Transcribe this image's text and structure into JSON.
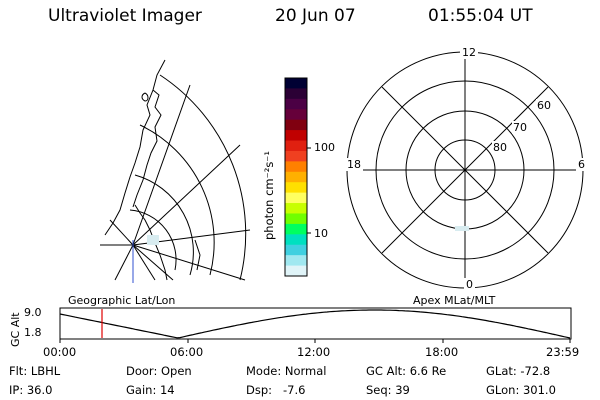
{
  "header": {
    "title": "Ultraviolet Imager",
    "date": "20 Jun 07",
    "time": "01:55:04 UT"
  },
  "colorbar": {
    "label": "photon cm⁻²s⁻¹",
    "ticks": [
      "100",
      "10"
    ],
    "colors": [
      "#000033",
      "#2b0035",
      "#4b0044",
      "#66003a",
      "#800010",
      "#c00000",
      "#e02010",
      "#f04020",
      "#ff8000",
      "#ffb000",
      "#ffe000",
      "#ffff60",
      "#c8ff00",
      "#70ff00",
      "#00ff60",
      "#00e0c0",
      "#40d0e0",
      "#a0e8f0",
      "#e0f4f8"
    ]
  },
  "polar": {
    "top_label": "12",
    "bottom_label": "0",
    "left_label": "18",
    "right_label": "6",
    "lat_labels": [
      "60",
      "70",
      "80"
    ]
  },
  "timeline": {
    "ylabel": "GC Alt",
    "y_ticks": [
      "9.0",
      "1.8"
    ],
    "left_caption": "Geographic Lat/Lon",
    "right_caption": "Apex MLat/MLT",
    "x_ticks": [
      "00:00",
      "06:00",
      "12:00",
      "18:00",
      "23:59"
    ],
    "marker_color": "#e00000"
  },
  "info": {
    "row1": [
      {
        "label": "Flt:",
        "value": "LBHL"
      },
      {
        "label": "Door:",
        "value": "Open"
      },
      {
        "label": "Mode:",
        "value": "Normal"
      },
      {
        "label": "GC Alt:",
        "value": "6.6 Re"
      },
      {
        "label": "GLat:",
        "value": "-72.8"
      }
    ],
    "row2": [
      {
        "label": "IP:",
        "value": "36.0"
      },
      {
        "label": "Gain:",
        "value": "14"
      },
      {
        "label": "Dsp:",
        "value": "-7.6"
      },
      {
        "label": "Seq:",
        "value": "39"
      },
      {
        "label": "GLon:",
        "value": "301.0"
      }
    ]
  }
}
